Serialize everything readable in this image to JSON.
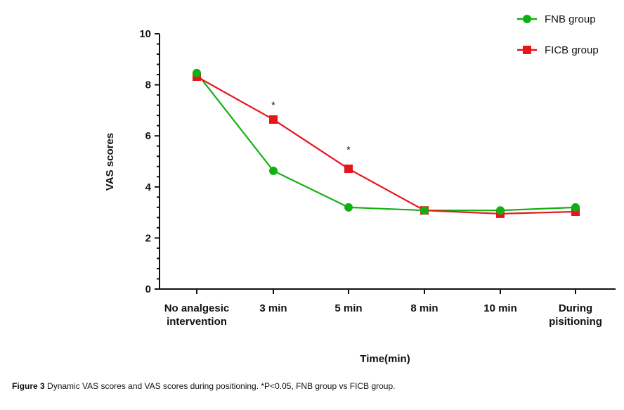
{
  "chart_data": {
    "type": "line",
    "title": "",
    "xlabel": "Time(min)",
    "ylabel": "VAS scores",
    "ylim": [
      0,
      10
    ],
    "yticks": [
      0,
      2,
      4,
      6,
      8,
      10
    ],
    "y_minor_step": 0.4,
    "grid": false,
    "legend_position": "top-right",
    "categories": [
      [
        "No analgesic",
        "intervention"
      ],
      [
        "3 min"
      ],
      [
        "5 min"
      ],
      [
        "8 min"
      ],
      [
        "10 min"
      ],
      [
        "During",
        "pisitioning"
      ]
    ],
    "series": [
      {
        "name": "FNB group",
        "color": "#11b011",
        "marker": "circle",
        "values": [
          8.46,
          4.63,
          3.2,
          3.08,
          3.08,
          3.2
        ]
      },
      {
        "name": "FICB group",
        "color": "#e8141c",
        "marker": "square",
        "values": [
          8.32,
          6.64,
          4.71,
          3.08,
          2.95,
          3.03
        ]
      }
    ],
    "annotations": [
      {
        "category_index": 1,
        "text": "*",
        "y": 7.3
      },
      {
        "category_index": 2,
        "text": "*",
        "y": 5.55
      }
    ]
  },
  "caption": {
    "label": "Figure 3",
    "text": " Dynamic VAS scores and VAS scores during positioning. *P<0.05, FNB group vs FICB group."
  }
}
